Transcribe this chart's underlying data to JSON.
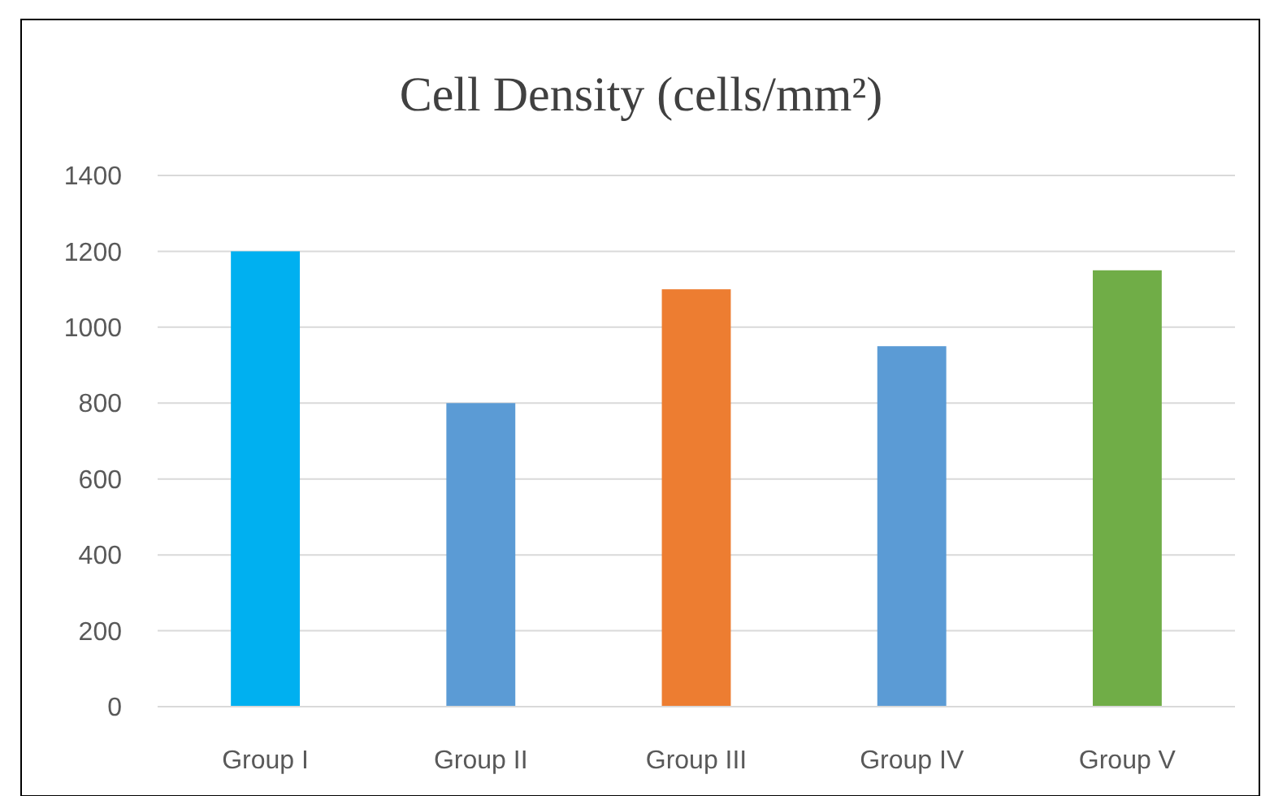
{
  "chart_data": {
    "type": "bar",
    "title": "Cell Density (cells/mm²)",
    "categories": [
      "Group I",
      "Group II",
      "Group III",
      "Group IV",
      "Group V"
    ],
    "values": [
      1200,
      800,
      1100,
      950,
      1150
    ],
    "colors": [
      "#00b0f0",
      "#5b9bd5",
      "#ed7d31",
      "#5b9bd5",
      "#70ad47"
    ],
    "ylim": [
      0,
      1400
    ],
    "yticks": [
      0,
      200,
      400,
      600,
      800,
      1000,
      1200,
      1400
    ],
    "grid": "y"
  }
}
